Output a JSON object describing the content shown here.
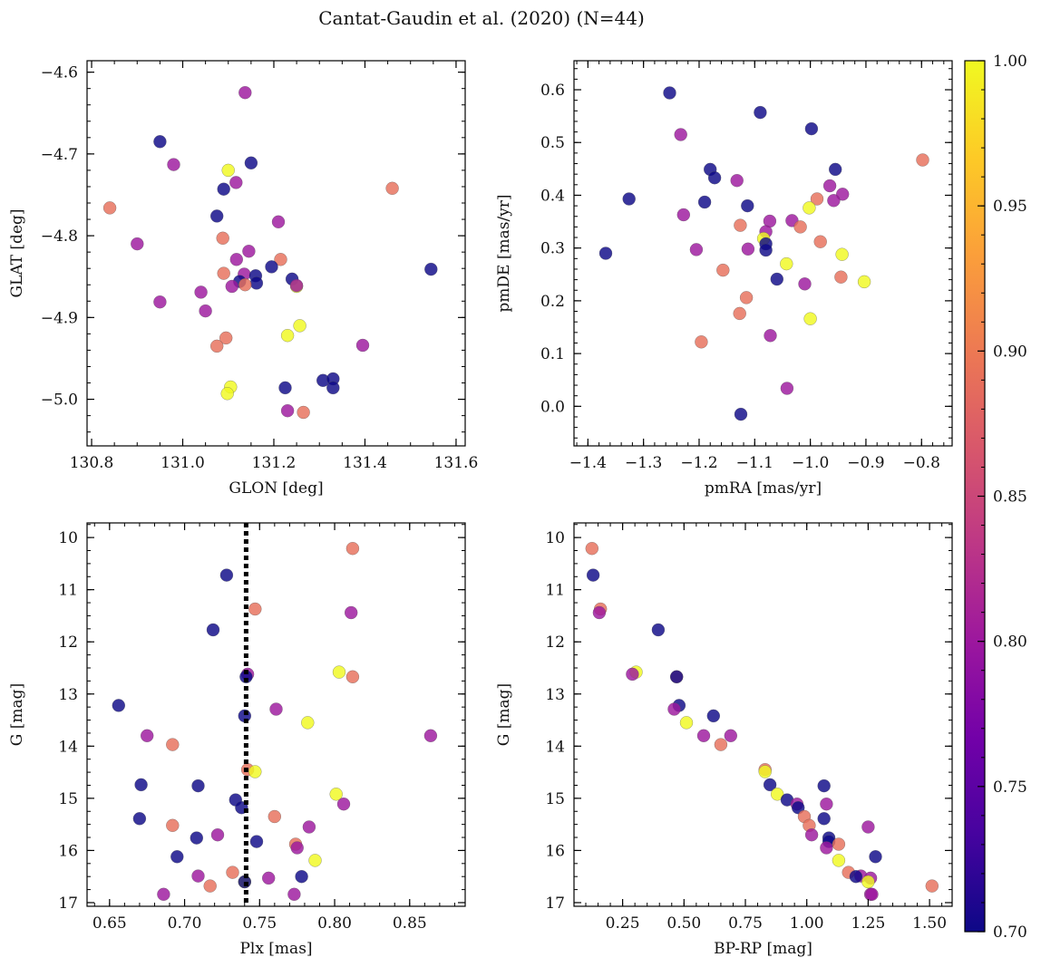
{
  "figure": {
    "title": "Cantat-Gaudin et al. (2020) (N=44)"
  },
  "colors": {
    "background": "#ffffff",
    "axis": "#000000",
    "marker_edge": "#555555",
    "reference_line": "#000000",
    "colormap": "plasma"
  },
  "chart_data": [
    {
      "type": "scatter",
      "name": "position",
      "xlabel": "GLON [deg]",
      "ylabel": "GLAT [deg]",
      "xlim": [
        130.79,
        131.62
      ],
      "ylim": [
        -5.057,
        -4.586
      ],
      "xticks": [
        130.8,
        131.0,
        131.2,
        131.4,
        131.6
      ],
      "xtick_labels": [
        "130.8",
        "131.0",
        "131.2",
        "131.4",
        "131.6"
      ],
      "yticks": [
        -5.0,
        -4.9,
        -4.8,
        -4.7,
        -4.6
      ],
      "ytick_labels": [
        "−5.0",
        "−4.9",
        "−4.8",
        "−4.7",
        "−4.6"
      ],
      "x_minor_step": 0.05,
      "y_minor_step": 0.02,
      "points": [
        {
          "x": 131.137,
          "y": -4.625,
          "c": 0.8
        },
        {
          "x": 130.95,
          "y": -4.685,
          "c": 0.7
        },
        {
          "x": 130.98,
          "y": -4.713,
          "c": 0.8
        },
        {
          "x": 131.1,
          "y": -4.72,
          "c": 1.0
        },
        {
          "x": 131.15,
          "y": -4.711,
          "c": 0.7
        },
        {
          "x": 131.117,
          "y": -4.735,
          "c": 0.8
        },
        {
          "x": 131.09,
          "y": -4.743,
          "c": 0.7
        },
        {
          "x": 131.46,
          "y": -4.742,
          "c": 0.89
        },
        {
          "x": 130.84,
          "y": -4.766,
          "c": 0.89
        },
        {
          "x": 131.075,
          "y": -4.776,
          "c": 0.7
        },
        {
          "x": 131.21,
          "y": -4.783,
          "c": 0.8
        },
        {
          "x": 131.088,
          "y": -4.803,
          "c": 0.89
        },
        {
          "x": 130.9,
          "y": -4.81,
          "c": 0.8
        },
        {
          "x": 131.145,
          "y": -4.819,
          "c": 0.8
        },
        {
          "x": 131.118,
          "y": -4.829,
          "c": 0.8
        },
        {
          "x": 131.215,
          "y": -4.829,
          "c": 0.89
        },
        {
          "x": 131.195,
          "y": -4.838,
          "c": 0.7
        },
        {
          "x": 131.545,
          "y": -4.841,
          "c": 0.7
        },
        {
          "x": 131.09,
          "y": -4.846,
          "c": 0.89
        },
        {
          "x": 131.135,
          "y": -4.847,
          "c": 0.8
        },
        {
          "x": 131.16,
          "y": -4.849,
          "c": 0.7
        },
        {
          "x": 131.24,
          "y": -4.853,
          "c": 0.7
        },
        {
          "x": 131.125,
          "y": -4.856,
          "c": 0.7
        },
        {
          "x": 131.162,
          "y": -4.858,
          "c": 0.7
        },
        {
          "x": 131.108,
          "y": -4.862,
          "c": 0.8
        },
        {
          "x": 131.137,
          "y": -4.86,
          "c": 0.89
        },
        {
          "x": 131.25,
          "y": -4.862,
          "c": 1.0
        },
        {
          "x": 131.04,
          "y": -4.869,
          "c": 0.8
        },
        {
          "x": 130.95,
          "y": -4.881,
          "c": 0.8
        },
        {
          "x": 131.05,
          "y": -4.892,
          "c": 0.8
        },
        {
          "x": 131.257,
          "y": -4.91,
          "c": 1.0
        },
        {
          "x": 131.23,
          "y": -4.922,
          "c": 1.0
        },
        {
          "x": 131.095,
          "y": -4.925,
          "c": 0.89
        },
        {
          "x": 131.075,
          "y": -4.935,
          "c": 0.89
        },
        {
          "x": 131.395,
          "y": -4.934,
          "c": 0.8
        },
        {
          "x": 131.308,
          "y": -4.977,
          "c": 0.7
        },
        {
          "x": 131.33,
          "y": -4.975,
          "c": 0.7
        },
        {
          "x": 131.105,
          "y": -4.985,
          "c": 1.0
        },
        {
          "x": 131.225,
          "y": -4.986,
          "c": 0.7
        },
        {
          "x": 131.33,
          "y": -4.986,
          "c": 0.7
        },
        {
          "x": 131.098,
          "y": -4.993,
          "c": 1.0
        },
        {
          "x": 131.23,
          "y": -5.014,
          "c": 0.8
        },
        {
          "x": 131.265,
          "y": -5.016,
          "c": 0.89
        },
        {
          "x": 131.25,
          "y": -4.861,
          "c": 0.8
        }
      ]
    },
    {
      "type": "scatter",
      "name": "proper-motion",
      "xlabel": "pmRA [mas/yr]",
      "ylabel": "pmDE [mas/yr]",
      "xlim": [
        -1.425,
        -0.745
      ],
      "ylim": [
        -0.075,
        0.655
      ],
      "xticks": [
        -1.4,
        -1.3,
        -1.2,
        -1.1,
        -1.0,
        -0.9,
        -0.8
      ],
      "xtick_labels": [
        "−1.4",
        "−1.3",
        "−1.2",
        "−1.1",
        "−1.0",
        "−0.9",
        "−0.8"
      ],
      "yticks": [
        0.0,
        0.1,
        0.2,
        0.3,
        0.4,
        0.5,
        0.6
      ],
      "ytick_labels": [
        "0.0",
        "0.1",
        "0.2",
        "0.3",
        "0.4",
        "0.5",
        "0.6"
      ],
      "x_minor_step": 0.02,
      "y_minor_step": 0.02,
      "points": [
        {
          "x": -1.253,
          "y": 0.594,
          "c": 0.7
        },
        {
          "x": -1.09,
          "y": 0.557,
          "c": 0.7
        },
        {
          "x": -0.998,
          "y": 0.526,
          "c": 0.7
        },
        {
          "x": -1.233,
          "y": 0.515,
          "c": 0.8
        },
        {
          "x": -0.798,
          "y": 0.467,
          "c": 0.89
        },
        {
          "x": -1.18,
          "y": 0.449,
          "c": 0.7
        },
        {
          "x": -0.955,
          "y": 0.449,
          "c": 0.7
        },
        {
          "x": -1.172,
          "y": 0.433,
          "c": 0.7
        },
        {
          "x": -1.132,
          "y": 0.428,
          "c": 0.8
        },
        {
          "x": -0.965,
          "y": 0.418,
          "c": 0.8
        },
        {
          "x": -0.942,
          "y": 0.402,
          "c": 0.8
        },
        {
          "x": -1.326,
          "y": 0.393,
          "c": 0.7
        },
        {
          "x": -0.988,
          "y": 0.393,
          "c": 0.89
        },
        {
          "x": -0.958,
          "y": 0.39,
          "c": 0.8
        },
        {
          "x": -1.19,
          "y": 0.387,
          "c": 0.7
        },
        {
          "x": -1.113,
          "y": 0.38,
          "c": 0.7
        },
        {
          "x": -1.002,
          "y": 0.376,
          "c": 1.0
        },
        {
          "x": -1.228,
          "y": 0.363,
          "c": 0.8
        },
        {
          "x": -1.033,
          "y": 0.352,
          "c": 0.8
        },
        {
          "x": -1.073,
          "y": 0.351,
          "c": 0.8
        },
        {
          "x": -1.126,
          "y": 0.343,
          "c": 0.89
        },
        {
          "x": -1.018,
          "y": 0.34,
          "c": 0.89
        },
        {
          "x": -1.08,
          "y": 0.331,
          "c": 0.8
        },
        {
          "x": -1.084,
          "y": 0.318,
          "c": 1.0
        },
        {
          "x": -0.982,
          "y": 0.312,
          "c": 0.89
        },
        {
          "x": -1.08,
          "y": 0.308,
          "c": 0.7
        },
        {
          "x": -1.205,
          "y": 0.297,
          "c": 0.8
        },
        {
          "x": -1.112,
          "y": 0.298,
          "c": 0.8
        },
        {
          "x": -1.08,
          "y": 0.296,
          "c": 0.7
        },
        {
          "x": -1.368,
          "y": 0.29,
          "c": 0.7
        },
        {
          "x": -0.943,
          "y": 0.288,
          "c": 1.0
        },
        {
          "x": -1.043,
          "y": 0.27,
          "c": 1.0
        },
        {
          "x": -1.157,
          "y": 0.258,
          "c": 0.89
        },
        {
          "x": -0.945,
          "y": 0.245,
          "c": 0.89
        },
        {
          "x": -1.06,
          "y": 0.241,
          "c": 0.7
        },
        {
          "x": -0.903,
          "y": 0.236,
          "c": 1.0
        },
        {
          "x": -1.01,
          "y": 0.232,
          "c": 0.8
        },
        {
          "x": -1.115,
          "y": 0.206,
          "c": 0.89
        },
        {
          "x": -1.127,
          "y": 0.176,
          "c": 0.89
        },
        {
          "x": -1.0,
          "y": 0.166,
          "c": 1.0
        },
        {
          "x": -1.072,
          "y": 0.134,
          "c": 0.8
        },
        {
          "x": -1.196,
          "y": 0.122,
          "c": 0.89
        },
        {
          "x": -1.042,
          "y": 0.034,
          "c": 0.8
        },
        {
          "x": -1.125,
          "y": -0.015,
          "c": 0.7
        }
      ]
    },
    {
      "type": "scatter",
      "name": "parallax-magnitude",
      "xlabel": "Plx [mas]",
      "ylabel": "G [mag]",
      "xlim": [
        0.635,
        0.887
      ],
      "ylim": [
        17.07,
        9.72
      ],
      "y_inverted": true,
      "reference_line_x": 0.741,
      "xticks": [
        0.65,
        0.7,
        0.75,
        0.8,
        0.85
      ],
      "xtick_labels": [
        "0.65",
        "0.70",
        "0.75",
        "0.80",
        "0.85"
      ],
      "yticks": [
        10,
        11,
        12,
        13,
        14,
        15,
        16,
        17
      ],
      "ytick_labels": [
        "10",
        "11",
        "12",
        "13",
        "14",
        "15",
        "16",
        "17"
      ],
      "x_minor_step": 0.01,
      "y_minor_step": 0.25,
      "points": [
        {
          "x": 0.812,
          "y": 10.21,
          "c": 0.89
        },
        {
          "x": 0.728,
          "y": 10.72,
          "c": 0.7
        },
        {
          "x": 0.747,
          "y": 11.37,
          "c": 0.89
        },
        {
          "x": 0.811,
          "y": 11.44,
          "c": 0.8
        },
        {
          "x": 0.719,
          "y": 11.77,
          "c": 0.7
        },
        {
          "x": 0.803,
          "y": 12.58,
          "c": 1.0
        },
        {
          "x": 0.742,
          "y": 12.62,
          "c": 0.8
        },
        {
          "x": 0.812,
          "y": 12.67,
          "c": 0.89
        },
        {
          "x": 0.741,
          "y": 12.67,
          "c": 0.7
        },
        {
          "x": 0.656,
          "y": 13.22,
          "c": 0.7
        },
        {
          "x": 0.761,
          "y": 13.29,
          "c": 0.8
        },
        {
          "x": 0.74,
          "y": 13.42,
          "c": 0.7
        },
        {
          "x": 0.782,
          "y": 13.55,
          "c": 1.0
        },
        {
          "x": 0.675,
          "y": 13.8,
          "c": 0.8
        },
        {
          "x": 0.864,
          "y": 13.8,
          "c": 0.8
        },
        {
          "x": 0.692,
          "y": 13.97,
          "c": 0.89
        },
        {
          "x": 0.742,
          "y": 14.45,
          "c": 0.89
        },
        {
          "x": 0.747,
          "y": 14.49,
          "c": 1.0
        },
        {
          "x": 0.671,
          "y": 14.74,
          "c": 0.7
        },
        {
          "x": 0.709,
          "y": 14.76,
          "c": 0.7
        },
        {
          "x": 0.801,
          "y": 14.92,
          "c": 1.0
        },
        {
          "x": 0.734,
          "y": 15.03,
          "c": 0.7
        },
        {
          "x": 0.806,
          "y": 15.11,
          "c": 0.8
        },
        {
          "x": 0.738,
          "y": 15.18,
          "c": 0.7
        },
        {
          "x": 0.76,
          "y": 15.35,
          "c": 0.89
        },
        {
          "x": 0.67,
          "y": 15.39,
          "c": 0.7
        },
        {
          "x": 0.692,
          "y": 15.52,
          "c": 0.89
        },
        {
          "x": 0.783,
          "y": 15.55,
          "c": 0.8
        },
        {
          "x": 0.722,
          "y": 15.7,
          "c": 0.8
        },
        {
          "x": 0.708,
          "y": 15.76,
          "c": 0.7
        },
        {
          "x": 0.748,
          "y": 15.83,
          "c": 0.7
        },
        {
          "x": 0.774,
          "y": 15.88,
          "c": 0.89
        },
        {
          "x": 0.775,
          "y": 15.95,
          "c": 0.8
        },
        {
          "x": 0.695,
          "y": 16.12,
          "c": 0.7
        },
        {
          "x": 0.787,
          "y": 16.19,
          "c": 1.0
        },
        {
          "x": 0.732,
          "y": 16.42,
          "c": 0.89
        },
        {
          "x": 0.709,
          "y": 16.49,
          "c": 0.8
        },
        {
          "x": 0.778,
          "y": 16.5,
          "c": 0.7
        },
        {
          "x": 0.756,
          "y": 16.53,
          "c": 0.8
        },
        {
          "x": 0.74,
          "y": 16.6,
          "c": 1.0
        },
        {
          "x": 0.717,
          "y": 16.68,
          "c": 0.89
        },
        {
          "x": 0.686,
          "y": 16.84,
          "c": 0.8
        },
        {
          "x": 0.773,
          "y": 16.84,
          "c": 0.8
        },
        {
          "x": 0.74,
          "y": 16.6,
          "c": 0.7
        }
      ]
    },
    {
      "type": "scatter",
      "name": "color-magnitude",
      "xlabel": "BP-RP [mag]",
      "ylabel": "G [mag]",
      "xlim": [
        0.052,
        1.592
      ],
      "ylim": [
        17.07,
        9.72
      ],
      "y_inverted": true,
      "xticks": [
        0.25,
        0.5,
        0.75,
        1.0,
        1.25,
        1.5
      ],
      "xtick_labels": [
        "0.25",
        "0.50",
        "0.75",
        "1.00",
        "1.25",
        "1.50"
      ],
      "yticks": [
        10,
        11,
        12,
        13,
        14,
        15,
        16,
        17
      ],
      "ytick_labels": [
        "10",
        "11",
        "12",
        "13",
        "14",
        "15",
        "16",
        "17"
      ],
      "x_minor_step": 0.05,
      "y_minor_step": 0.25,
      "points": [
        {
          "x": 0.125,
          "y": 10.21,
          "c": 0.89
        },
        {
          "x": 0.13,
          "y": 10.72,
          "c": 0.7
        },
        {
          "x": 0.16,
          "y": 11.37,
          "c": 0.89
        },
        {
          "x": 0.155,
          "y": 11.44,
          "c": 0.8
        },
        {
          "x": 0.395,
          "y": 11.77,
          "c": 0.7
        },
        {
          "x": 0.305,
          "y": 12.58,
          "c": 1.0
        },
        {
          "x": 0.29,
          "y": 12.62,
          "c": 0.8
        },
        {
          "x": 0.47,
          "y": 12.67,
          "c": 0.89
        },
        {
          "x": 0.47,
          "y": 12.67,
          "c": 0.7
        },
        {
          "x": 0.48,
          "y": 13.22,
          "c": 0.7
        },
        {
          "x": 0.46,
          "y": 13.29,
          "c": 0.8
        },
        {
          "x": 0.62,
          "y": 13.42,
          "c": 0.7
        },
        {
          "x": 0.51,
          "y": 13.55,
          "c": 1.0
        },
        {
          "x": 0.58,
          "y": 13.8,
          "c": 0.8
        },
        {
          "x": 0.69,
          "y": 13.8,
          "c": 0.8
        },
        {
          "x": 0.65,
          "y": 13.97,
          "c": 0.89
        },
        {
          "x": 0.83,
          "y": 14.45,
          "c": 0.89
        },
        {
          "x": 0.83,
          "y": 14.49,
          "c": 1.0
        },
        {
          "x": 0.85,
          "y": 14.74,
          "c": 0.7
        },
        {
          "x": 1.07,
          "y": 14.76,
          "c": 0.7
        },
        {
          "x": 0.88,
          "y": 14.92,
          "c": 1.0
        },
        {
          "x": 0.92,
          "y": 15.03,
          "c": 0.7
        },
        {
          "x": 0.96,
          "y": 15.11,
          "c": 0.8
        },
        {
          "x": 1.08,
          "y": 15.11,
          "c": 0.8
        },
        {
          "x": 0.965,
          "y": 15.18,
          "c": 0.7
        },
        {
          "x": 0.99,
          "y": 15.35,
          "c": 0.89
        },
        {
          "x": 1.07,
          "y": 15.39,
          "c": 0.7
        },
        {
          "x": 1.01,
          "y": 15.52,
          "c": 0.89
        },
        {
          "x": 1.25,
          "y": 15.55,
          "c": 0.8
        },
        {
          "x": 1.02,
          "y": 15.7,
          "c": 0.8
        },
        {
          "x": 1.09,
          "y": 15.76,
          "c": 0.7
        },
        {
          "x": 1.09,
          "y": 15.83,
          "c": 0.7
        },
        {
          "x": 1.13,
          "y": 15.88,
          "c": 0.89
        },
        {
          "x": 1.08,
          "y": 15.95,
          "c": 0.8
        },
        {
          "x": 1.28,
          "y": 16.12,
          "c": 0.7
        },
        {
          "x": 1.13,
          "y": 16.19,
          "c": 1.0
        },
        {
          "x": 1.17,
          "y": 16.42,
          "c": 0.89
        },
        {
          "x": 1.22,
          "y": 16.49,
          "c": 0.8
        },
        {
          "x": 1.2,
          "y": 16.5,
          "c": 0.7
        },
        {
          "x": 1.26,
          "y": 16.53,
          "c": 0.8
        },
        {
          "x": 1.25,
          "y": 16.6,
          "c": 1.0
        },
        {
          "x": 1.51,
          "y": 16.68,
          "c": 0.89
        },
        {
          "x": 1.26,
          "y": 16.84,
          "c": 0.8
        },
        {
          "x": 1.265,
          "y": 16.84,
          "c": 0.8
        }
      ]
    }
  ],
  "colorbar": {
    "range": [
      0.7,
      1.0
    ],
    "ticks": [
      0.7,
      0.75,
      0.8,
      0.85,
      0.9,
      0.95,
      1.0
    ],
    "tick_labels": [
      "0.70",
      "0.75",
      "0.80",
      "0.85",
      "0.90",
      "0.95",
      "1.00"
    ],
    "minor_step": 0.01,
    "colormap_stops": [
      "#0d0887",
      "#46039f",
      "#7201a8",
      "#9c179e",
      "#bd3786",
      "#d8576b",
      "#ed7953",
      "#fb9f3a",
      "#fdca26",
      "#f0f921"
    ]
  }
}
